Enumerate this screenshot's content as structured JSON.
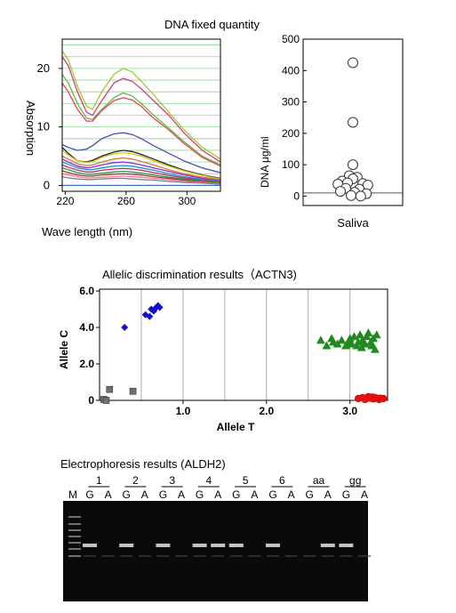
{
  "figure": {
    "title_dna": "DNA fixed quantity",
    "title_allelic": "Allelic discrimination results（ACTN3)",
    "title_electro": "Electrophoresis results (ALDH2)"
  },
  "chart_data": [
    {
      "type": "line",
      "title": "",
      "xlabel": "Wave length (nm)",
      "ylabel": "Absorption",
      "xlim": [
        218,
        322
      ],
      "ylim": [
        -1,
        25
      ],
      "xticks": [
        220,
        260,
        300
      ],
      "yticks": [
        0,
        10,
        20
      ],
      "grid": "horizontal",
      "series": [
        {
          "color": "#d43a86",
          "x": [
            218,
            222,
            228,
            234,
            238,
            244,
            252,
            258,
            264,
            270,
            278,
            288,
            298,
            310,
            322
          ],
          "y": [
            22,
            20.5,
            16,
            12.5,
            12,
            14.5,
            17.5,
            18.3,
            17.8,
            16.5,
            14.5,
            12,
            9,
            6,
            4
          ]
        },
        {
          "color": "#9acd32",
          "x": [
            218,
            222,
            228,
            234,
            238,
            244,
            252,
            258,
            264,
            270,
            278,
            288,
            298,
            310,
            322
          ],
          "y": [
            23,
            21.5,
            17,
            13.5,
            13,
            16,
            19,
            20,
            19.4,
            17.8,
            15.5,
            12.5,
            9.5,
            6.5,
            4.5
          ]
        },
        {
          "color": "#66bb33",
          "x": [
            218,
            222,
            228,
            234,
            238,
            244,
            252,
            258,
            264,
            270,
            278,
            288,
            298,
            310,
            322
          ],
          "y": [
            19,
            17.5,
            14,
            11.5,
            11.3,
            13,
            15,
            15.8,
            15.3,
            14,
            12,
            9.8,
            7.5,
            5,
            3.5
          ]
        },
        {
          "color": "#e04070",
          "x": [
            218,
            222,
            228,
            234,
            238,
            244,
            252,
            258,
            264,
            270,
            278,
            288,
            298,
            310,
            322
          ],
          "y": [
            17.5,
            16,
            13,
            11,
            11,
            12.8,
            14.5,
            15,
            14.6,
            13.5,
            11.5,
            9.5,
            7.2,
            4.8,
            3.3
          ]
        },
        {
          "color": "#4a4ab5",
          "x": [
            218,
            222,
            228,
            234,
            238,
            244,
            252,
            258,
            264,
            270,
            278,
            288,
            298,
            310,
            322
          ],
          "y": [
            7,
            6.5,
            6,
            6.2,
            6.8,
            8,
            8.8,
            9,
            8.7,
            8,
            6.8,
            5.5,
            4.2,
            3,
            2.2
          ]
        },
        {
          "color": "#222222",
          "x": [
            218,
            222,
            228,
            234,
            238,
            244,
            252,
            258,
            264,
            270,
            278,
            288,
            298,
            310,
            322
          ],
          "y": [
            6.5,
            5.5,
            4.2,
            4,
            4.3,
            5,
            5.7,
            6,
            5.8,
            5.3,
            4.5,
            3.5,
            2.6,
            1.8,
            1.2
          ]
        },
        {
          "color": "#d4c21a",
          "x": [
            218,
            222,
            228,
            234,
            238,
            244,
            252,
            258,
            264,
            270,
            278,
            288,
            298,
            310,
            322
          ],
          "y": [
            6,
            5.2,
            4.2,
            3.9,
            4.1,
            4.8,
            5.4,
            5.6,
            5.4,
            5,
            4.2,
            3.3,
            2.5,
            1.7,
            1.1
          ]
        },
        {
          "color": "#e0732e",
          "x": [
            218,
            222,
            228,
            234,
            238,
            244,
            252,
            258,
            264,
            270,
            278,
            288,
            298,
            310,
            322
          ],
          "y": [
            5,
            4.5,
            3.7,
            3.4,
            3.5,
            4,
            4.5,
            4.7,
            4.5,
            4.1,
            3.5,
            2.7,
            2,
            1.4,
            1
          ]
        },
        {
          "color": "#8a2be2",
          "x": [
            218,
            222,
            228,
            234,
            238,
            244,
            252,
            258,
            264,
            270,
            278,
            288,
            298,
            310,
            322
          ],
          "y": [
            4.5,
            4,
            3.3,
            3,
            3.1,
            3.5,
            3.9,
            4,
            3.8,
            3.5,
            3,
            2.4,
            1.8,
            1.2,
            0.8
          ]
        },
        {
          "color": "#1e90c8",
          "x": [
            218,
            222,
            228,
            234,
            238,
            244,
            252,
            258,
            264,
            270,
            278,
            288,
            298,
            310,
            322
          ],
          "y": [
            4,
            3.6,
            3,
            2.7,
            2.7,
            3,
            3.3,
            3.4,
            3.3,
            3,
            2.6,
            2,
            1.5,
            1,
            0.7
          ]
        },
        {
          "color": "#c0306a",
          "x": [
            218,
            222,
            228,
            234,
            238,
            244,
            252,
            258,
            264,
            270,
            278,
            288,
            298,
            310,
            322
          ],
          "y": [
            3.5,
            3.1,
            2.6,
            2.3,
            2.3,
            2.6,
            2.8,
            2.9,
            2.8,
            2.6,
            2.2,
            1.7,
            1.3,
            0.9,
            0.6
          ]
        },
        {
          "color": "#2e8b57",
          "x": [
            218,
            222,
            228,
            234,
            238,
            244,
            252,
            258,
            264,
            270,
            278,
            288,
            298,
            310,
            322
          ],
          "y": [
            3,
            2.7,
            2.2,
            1.9,
            1.9,
            2.1,
            2.3,
            2.4,
            2.3,
            2.1,
            1.8,
            1.4,
            1.1,
            0.8,
            0.5
          ]
        },
        {
          "color": "#8b4513",
          "x": [
            218,
            222,
            228,
            234,
            238,
            244,
            252,
            258,
            264,
            270,
            278,
            288,
            298,
            310,
            322
          ],
          "y": [
            2.5,
            2.2,
            1.8,
            1.6,
            1.6,
            1.8,
            1.9,
            2,
            1.9,
            1.8,
            1.5,
            1.2,
            0.9,
            0.6,
            0.4
          ]
        },
        {
          "color": "#ff69b4",
          "x": [
            218,
            222,
            228,
            234,
            238,
            244,
            252,
            258,
            264,
            270,
            278,
            288,
            298,
            310,
            322
          ],
          "y": [
            2,
            1.8,
            1.5,
            1.3,
            1.3,
            1.4,
            1.5,
            1.6,
            1.5,
            1.4,
            1.2,
            1,
            0.7,
            0.5,
            0.3
          ]
        },
        {
          "color": "#808080",
          "x": [
            218,
            222,
            228,
            234,
            238,
            244,
            252,
            258,
            264,
            270,
            278,
            288,
            298,
            310,
            322
          ],
          "y": [
            1.5,
            1.3,
            1.1,
            1,
            1,
            1.1,
            1.2,
            1.2,
            1.1,
            1,
            0.9,
            0.7,
            0.5,
            0.4,
            0.2
          ]
        },
        {
          "color": "#4169e1",
          "x": [
            218,
            222,
            228,
            234,
            238,
            244,
            252,
            258,
            264,
            270,
            278,
            288,
            298,
            310,
            322
          ],
          "y": [
            0,
            0,
            0,
            0,
            0,
            0,
            0,
            0,
            0,
            0,
            0,
            0,
            0,
            0,
            0
          ]
        }
      ]
    },
    {
      "type": "scatter",
      "title": "",
      "xlabel": "Saliva",
      "ylabel": "DNA μg/ml",
      "ylim": [
        -30,
        500
      ],
      "yticks": [
        0,
        100,
        200,
        300,
        400,
        500
      ],
      "reference_line": 10,
      "points": [
        {
          "x": 0.0,
          "y": 425
        },
        {
          "x": 0.0,
          "y": 235
        },
        {
          "x": 0.0,
          "y": 100
        },
        {
          "x": -0.1,
          "y": 65
        },
        {
          "x": 0.12,
          "y": 60
        },
        {
          "x": 0.0,
          "y": 55
        },
        {
          "x": -0.3,
          "y": 48
        },
        {
          "x": -0.15,
          "y": 42
        },
        {
          "x": 0.28,
          "y": 40
        },
        {
          "x": -0.42,
          "y": 38
        },
        {
          "x": 0.42,
          "y": 35
        },
        {
          "x": -0.2,
          "y": 25
        },
        {
          "x": 0.18,
          "y": 22
        },
        {
          "x": -0.35,
          "y": 15
        },
        {
          "x": 0.05,
          "y": 12
        },
        {
          "x": 0.38,
          "y": 8
        },
        {
          "x": -0.05,
          "y": 2
        },
        {
          "x": 0.22,
          "y": 0
        }
      ]
    },
    {
      "type": "scatter",
      "title": "",
      "xlabel": "Allele T",
      "ylabel": "Allele C",
      "xlim": [
        0,
        3.45
      ],
      "ylim": [
        0,
        6.1
      ],
      "xticks": [
        1.0,
        2.0,
        3.0
      ],
      "yticks": [
        0,
        2.0,
        4.0,
        6.0
      ],
      "grid": "vertical",
      "series": [
        {
          "color": "#1010cc",
          "marker": "diamond",
          "x": [
            0.3,
            0.55,
            0.6,
            0.62,
            0.65,
            0.68,
            0.7,
            0.72
          ],
          "y": [
            4.0,
            4.7,
            4.6,
            5.0,
            4.9,
            5.1,
            5.2,
            5.1
          ]
        },
        {
          "color": "#1f8a1f",
          "marker": "triangle",
          "x": [
            2.65,
            2.72,
            2.8,
            2.85,
            2.9,
            2.95,
            3.0,
            3.02,
            3.05,
            3.08,
            3.1,
            3.12,
            3.15,
            3.18,
            3.2,
            3.22,
            3.25,
            3.28,
            3.3,
            3.32,
            2.78,
            2.98,
            3.14,
            3.26
          ],
          "y": [
            3.3,
            3.0,
            3.2,
            3.1,
            3.3,
            3.0,
            3.4,
            3.1,
            3.5,
            3.0,
            3.2,
            3.6,
            3.3,
            3.1,
            3.5,
            3.7,
            3.2,
            3.4,
            2.8,
            3.6,
            3.4,
            3.2,
            2.9,
            3.0
          ]
        },
        {
          "color": "#dd1111",
          "marker": "circle",
          "x": [
            3.1,
            3.15,
            3.2,
            3.22,
            3.25,
            3.28,
            3.3,
            3.33,
            3.36,
            3.4,
            3.18,
            3.27,
            3.35
          ],
          "y": [
            0.1,
            0.15,
            0.1,
            0.2,
            0.12,
            0.08,
            0.15,
            0.1,
            0.12,
            0.1,
            0.05,
            0.18,
            0.05
          ]
        },
        {
          "color": "#707070",
          "marker": "square",
          "x": [
            0.05,
            0.08,
            0.12,
            0.4
          ],
          "y": [
            0.05,
            0.0,
            0.6,
            0.5
          ]
        }
      ]
    }
  ],
  "gel": {
    "marker_label": "M",
    "lanes": [
      {
        "sample": "1",
        "alleles": [
          "G",
          "A"
        ]
      },
      {
        "sample": "2",
        "alleles": [
          "G",
          "A"
        ]
      },
      {
        "sample": "3",
        "alleles": [
          "G",
          "A"
        ]
      },
      {
        "sample": "4",
        "alleles": [
          "G",
          "A"
        ]
      },
      {
        "sample": "5",
        "alleles": [
          "G",
          "A"
        ]
      },
      {
        "sample": "6",
        "alleles": [
          "G",
          "A"
        ]
      },
      {
        "sample": "aa",
        "alleles": [
          "G",
          "A"
        ]
      },
      {
        "sample": "gg",
        "alleles": [
          "G",
          "A"
        ]
      }
    ],
    "bands": [
      1,
      0,
      1,
      0,
      1,
      0,
      1,
      1,
      1,
      0,
      1,
      0,
      0,
      1,
      1,
      0
    ]
  }
}
